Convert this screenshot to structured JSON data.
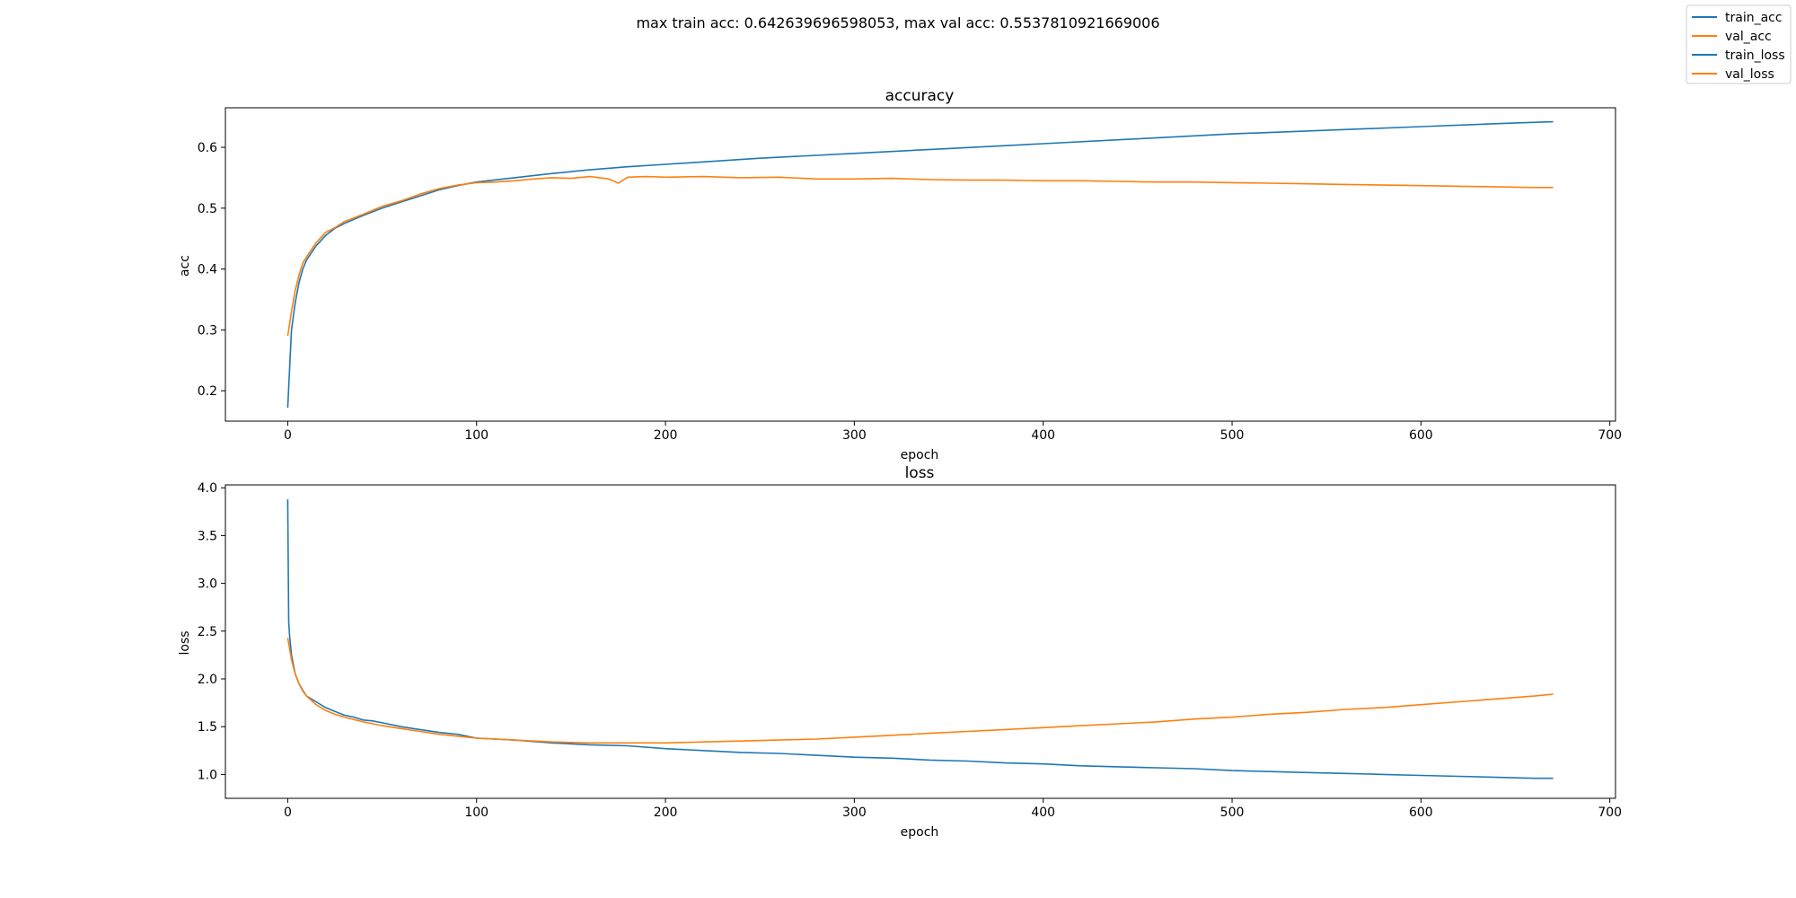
{
  "figure": {
    "suptitle": "max train acc: 0.642639696598053, max val acc: 0.5537810921669006"
  },
  "legend": {
    "placement": "top-right",
    "items": [
      {
        "label": "train_acc",
        "color": "#1f77b4"
      },
      {
        "label": "val_acc",
        "color": "#ff7f0e"
      },
      {
        "label": "train_loss",
        "color": "#1f77b4"
      },
      {
        "label": "val_loss",
        "color": "#ff7f0e"
      }
    ]
  },
  "chart_data": [
    {
      "type": "line",
      "title": "accuracy",
      "xlabel": "epoch",
      "ylabel": "acc",
      "xlim": [
        -33,
        703
      ],
      "ylim": [
        0.15,
        0.665
      ],
      "xticks": [
        0,
        100,
        200,
        300,
        400,
        500,
        600,
        700
      ],
      "yticks": [
        0.2,
        0.3,
        0.4,
        0.5,
        0.6
      ],
      "ytick_labels": [
        "0.2",
        "0.3",
        "0.4",
        "0.5",
        "0.6"
      ],
      "grid": false,
      "series": [
        {
          "name": "train_acc",
          "color": "#1f77b4",
          "x": [
            0,
            2,
            4,
            6,
            8,
            10,
            15,
            20,
            25,
            30,
            40,
            50,
            60,
            70,
            80,
            90,
            100,
            120,
            140,
            160,
            180,
            200,
            250,
            300,
            350,
            400,
            450,
            500,
            550,
            600,
            650,
            670
          ],
          "y": [
            0.172,
            0.3,
            0.345,
            0.378,
            0.4,
            0.415,
            0.438,
            0.455,
            0.467,
            0.475,
            0.488,
            0.5,
            0.51,
            0.52,
            0.53,
            0.537,
            0.543,
            0.55,
            0.557,
            0.563,
            0.568,
            0.572,
            0.582,
            0.59,
            0.598,
            0.606,
            0.614,
            0.622,
            0.628,
            0.634,
            0.64,
            0.642
          ]
        },
        {
          "name": "val_acc",
          "color": "#ff7f0e",
          "x": [
            0,
            2,
            4,
            6,
            8,
            10,
            15,
            20,
            25,
            30,
            40,
            50,
            60,
            70,
            80,
            90,
            100,
            110,
            120,
            130,
            140,
            150,
            160,
            170,
            175,
            180,
            190,
            200,
            220,
            240,
            260,
            280,
            300,
            320,
            340,
            360,
            380,
            400,
            420,
            440,
            460,
            480,
            500,
            520,
            540,
            560,
            580,
            600,
            620,
            640,
            660,
            670
          ],
          "y": [
            0.29,
            0.33,
            0.365,
            0.39,
            0.41,
            0.42,
            0.443,
            0.46,
            0.468,
            0.478,
            0.49,
            0.503,
            0.512,
            0.523,
            0.532,
            0.538,
            0.542,
            0.543,
            0.545,
            0.548,
            0.55,
            0.549,
            0.552,
            0.548,
            0.541,
            0.551,
            0.552,
            0.551,
            0.552,
            0.55,
            0.551,
            0.548,
            0.548,
            0.549,
            0.547,
            0.546,
            0.546,
            0.545,
            0.545,
            0.544,
            0.543,
            0.543,
            0.542,
            0.541,
            0.54,
            0.539,
            0.538,
            0.537,
            0.536,
            0.535,
            0.534,
            0.534
          ]
        }
      ]
    },
    {
      "type": "line",
      "title": "loss",
      "xlabel": "epoch",
      "ylabel": "loss",
      "xlim": [
        -33,
        703
      ],
      "ylim": [
        0.75,
        4.03
      ],
      "xticks": [
        0,
        100,
        200,
        300,
        400,
        500,
        600,
        700
      ],
      "yticks": [
        1.0,
        1.5,
        2.0,
        2.5,
        3.0,
        3.5,
        4.0
      ],
      "ytick_labels": [
        "1.0",
        "1.5",
        "2.0",
        "2.5",
        "3.0",
        "3.5",
        "4.0"
      ],
      "grid": false,
      "series": [
        {
          "name": "train_loss",
          "color": "#1f77b4",
          "x": [
            0,
            0.5,
            1,
            2,
            4,
            6,
            8,
            10,
            15,
            20,
            25,
            30,
            35,
            40,
            45,
            50,
            60,
            70,
            80,
            90,
            100,
            120,
            140,
            160,
            180,
            200,
            220,
            240,
            260,
            280,
            300,
            320,
            340,
            360,
            380,
            400,
            420,
            440,
            460,
            480,
            500,
            520,
            540,
            560,
            580,
            600,
            620,
            640,
            660,
            670
          ],
          "y": [
            3.88,
            2.6,
            2.45,
            2.25,
            2.05,
            1.95,
            1.88,
            1.82,
            1.76,
            1.7,
            1.66,
            1.62,
            1.6,
            1.57,
            1.56,
            1.54,
            1.5,
            1.47,
            1.44,
            1.42,
            1.38,
            1.36,
            1.33,
            1.31,
            1.3,
            1.27,
            1.25,
            1.23,
            1.22,
            1.2,
            1.18,
            1.17,
            1.15,
            1.14,
            1.12,
            1.11,
            1.09,
            1.08,
            1.07,
            1.06,
            1.04,
            1.03,
            1.02,
            1.01,
            1.0,
            0.99,
            0.98,
            0.97,
            0.96,
            0.96
          ]
        },
        {
          "name": "val_loss",
          "color": "#ff7f0e",
          "x": [
            0,
            2,
            4,
            6,
            8,
            10,
            15,
            20,
            25,
            30,
            40,
            50,
            60,
            70,
            80,
            90,
            100,
            120,
            140,
            160,
            180,
            200,
            220,
            240,
            260,
            280,
            300,
            320,
            340,
            360,
            380,
            400,
            420,
            440,
            460,
            480,
            500,
            520,
            540,
            560,
            580,
            600,
            620,
            640,
            660,
            670
          ],
          "y": [
            2.43,
            2.2,
            2.05,
            1.95,
            1.87,
            1.82,
            1.73,
            1.67,
            1.63,
            1.6,
            1.55,
            1.51,
            1.48,
            1.45,
            1.42,
            1.4,
            1.38,
            1.36,
            1.34,
            1.33,
            1.33,
            1.33,
            1.34,
            1.35,
            1.36,
            1.37,
            1.39,
            1.41,
            1.43,
            1.45,
            1.47,
            1.49,
            1.51,
            1.53,
            1.55,
            1.58,
            1.6,
            1.63,
            1.65,
            1.68,
            1.7,
            1.73,
            1.76,
            1.79,
            1.82,
            1.84
          ]
        }
      ]
    }
  ]
}
